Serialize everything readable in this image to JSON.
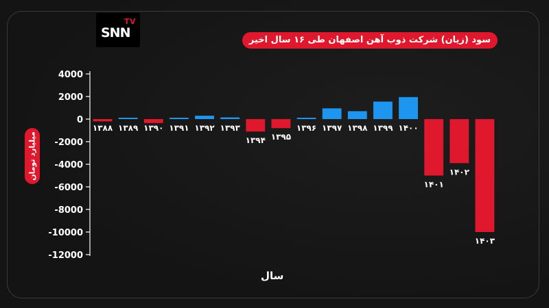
{
  "brand": {
    "logo_main": "SNN",
    "logo_sub": "TV",
    "accent_color": "#e0182d"
  },
  "chart_data": {
    "type": "bar",
    "title": "سود (زیان) شرکت ذوب آهن اصفهان طی ۱۶ سال اخیر",
    "xlabel": "سال",
    "ylabel": "میلیارد تومان",
    "categories": [
      "۱۳۸۸",
      "۱۳۸۹",
      "۱۳۹۰",
      "۱۳۹۱",
      "۱۳۹۲",
      "۱۳۹۳",
      "۱۳۹۴",
      "۱۳۹۵",
      "۱۳۹۶",
      "۱۳۹۷",
      "۱۳۹۸",
      "۱۳۹۹",
      "۱۴۰۰",
      "۱۴۰۱",
      "۱۴۰۲",
      "۱۴۰۳"
    ],
    "values": [
      -200,
      100,
      -350,
      50,
      300,
      150,
      -1100,
      -800,
      100,
      950,
      700,
      1550,
      1950,
      -5000,
      -3900,
      -10000
    ],
    "ylim": [
      -12000,
      4000
    ],
    "yticks": [
      4000,
      2000,
      0,
      -2000,
      -4000,
      -6000,
      -8000,
      -10000,
      -12000
    ],
    "ytick_labels": [
      "4000",
      "2000",
      "0",
      "-2000",
      "-4000",
      "-6000",
      "-8000",
      "-10000",
      "-12000"
    ],
    "positive_color": "#1e96ef",
    "negative_color": "#e0182d",
    "grid": false,
    "legend": "none"
  }
}
